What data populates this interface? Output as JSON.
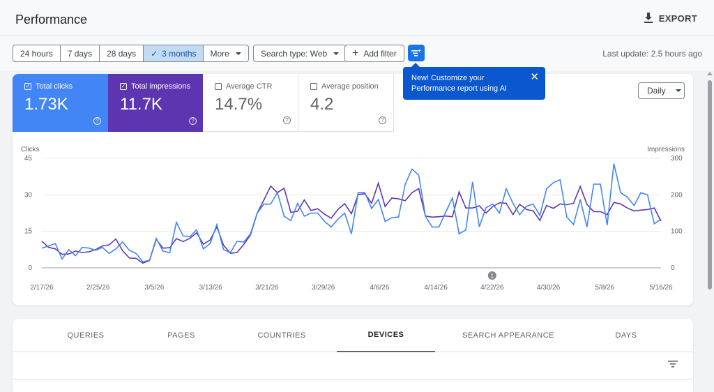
{
  "header": {
    "title": "Performance",
    "export_label": "EXPORT"
  },
  "toolbar": {
    "ranges": [
      {
        "label": "24 hours",
        "active": false
      },
      {
        "label": "7 days",
        "active": false
      },
      {
        "label": "28 days",
        "active": false
      },
      {
        "label": "3 months",
        "active": true
      },
      {
        "label": "More",
        "active": false
      }
    ],
    "search_type": "Search type: Web",
    "add_filter": "Add filter",
    "last_update": "Last update: 2.5 hours ago"
  },
  "tooltip": {
    "text": "New! Customize your Performance report using AI"
  },
  "metrics": {
    "clicks": {
      "label": "Total clicks",
      "value": "1.73K",
      "checked": true
    },
    "impressions": {
      "label": "Total impressions",
      "value": "11.7K",
      "checked": true
    },
    "ctr": {
      "label": "Average CTR",
      "value": "14.7%",
      "checked": false
    },
    "position": {
      "label": "Average position",
      "value": "4.2",
      "checked": false
    }
  },
  "granularity": "Daily",
  "chart_data": {
    "type": "line",
    "y_left_label": "Clicks",
    "y_right_label": "Impressions",
    "y_left_ticks": [
      "0",
      "15",
      "30",
      "45"
    ],
    "y_right_ticks": [
      "0",
      "100",
      "200",
      "300"
    ],
    "y_left_range": [
      0,
      45
    ],
    "y_right_range": [
      0,
      300
    ],
    "x_ticks": [
      "2/17/26",
      "2/25/26",
      "3/5/26",
      "3/13/26",
      "3/21/26",
      "3/29/26",
      "4/6/26",
      "4/14/26",
      "4/22/26",
      "4/30/26",
      "5/8/26",
      "5/16/26"
    ],
    "annotation": {
      "label": "1",
      "date": "4/22/26"
    },
    "colors": {
      "clicks": "#4285f4",
      "impressions": "#5e35b1"
    },
    "series": [
      {
        "name": "Clicks",
        "axis": "left",
        "values": [
          8.1,
          9,
          10,
          3.6,
          7.5,
          5,
          8.4,
          8.1,
          7.2,
          8.4,
          5.9,
          7.8,
          10.6,
          7.2,
          5.9,
          2.5,
          3.1,
          12.1,
          6.9,
          6.2,
          18.7,
          13.1,
          12.8,
          15.6,
          7.8,
          10,
          17.8,
          7.5,
          6.2,
          10.9,
          10.6,
          14,
          22.5,
          26.2,
          26.2,
          30.9,
          21.2,
          19.4,
          26.5,
          21.2,
          22.5,
          22.5,
          19.1,
          16.8,
          20,
          22.5,
          14,
          30.9,
          30.9,
          24.4,
          28.1,
          19.1,
          20.6,
          20.9,
          34.4,
          40.6,
          38.1,
          21.2,
          16.8,
          16.8,
          22.8,
          28.7,
          14,
          15.6,
          35.3,
          16.8,
          24.7,
          26.2,
          22.5,
          32.5,
          26.5,
          21.8,
          25.3,
          26.2,
          21.5,
          32.5,
          35,
          36.2,
          20.9,
          17.8,
          28.1,
          16.8,
          34.4,
          34.4,
          17.5,
          42.8,
          30.9,
          29.1,
          25.6,
          30.9,
          30,
          18.1,
          20
        ],
        "impressions": []
      },
      {
        "name": "Impressions",
        "axis": "right",
        "values": [
          73,
          56,
          52,
          37,
          38,
          46,
          42,
          44,
          50,
          60,
          63,
          79,
          47,
          27,
          26,
          13,
          20,
          78,
          54,
          55,
          80,
          72,
          81,
          96,
          65,
          76,
          112,
          62,
          40,
          42,
          64,
          90,
          150,
          186,
          224,
          206,
          218,
          152,
          155,
          186,
          157,
          162,
          147,
          136,
          160,
          176,
          148,
          201,
          203,
          177,
          232,
          168,
          191,
          189,
          184,
          206,
          217,
          142,
          139,
          140,
          142,
          140,
          208,
          164,
          164,
          170,
          150,
          168,
          178,
          177,
          146,
          174,
          160,
          156,
          130,
          171,
          163,
          175,
          173,
          177,
          223,
          174,
          154,
          154,
          146,
          179,
          175,
          164,
          156,
          158,
          160,
          164,
          128
        ]
      }
    ]
  },
  "tabs": [
    {
      "label": "QUERIES",
      "active": false
    },
    {
      "label": "PAGES",
      "active": false
    },
    {
      "label": "COUNTRIES",
      "active": false
    },
    {
      "label": "DEVICES",
      "active": true
    },
    {
      "label": "SEARCH APPEARANCE",
      "active": false
    },
    {
      "label": "DAYS",
      "active": false
    }
  ]
}
